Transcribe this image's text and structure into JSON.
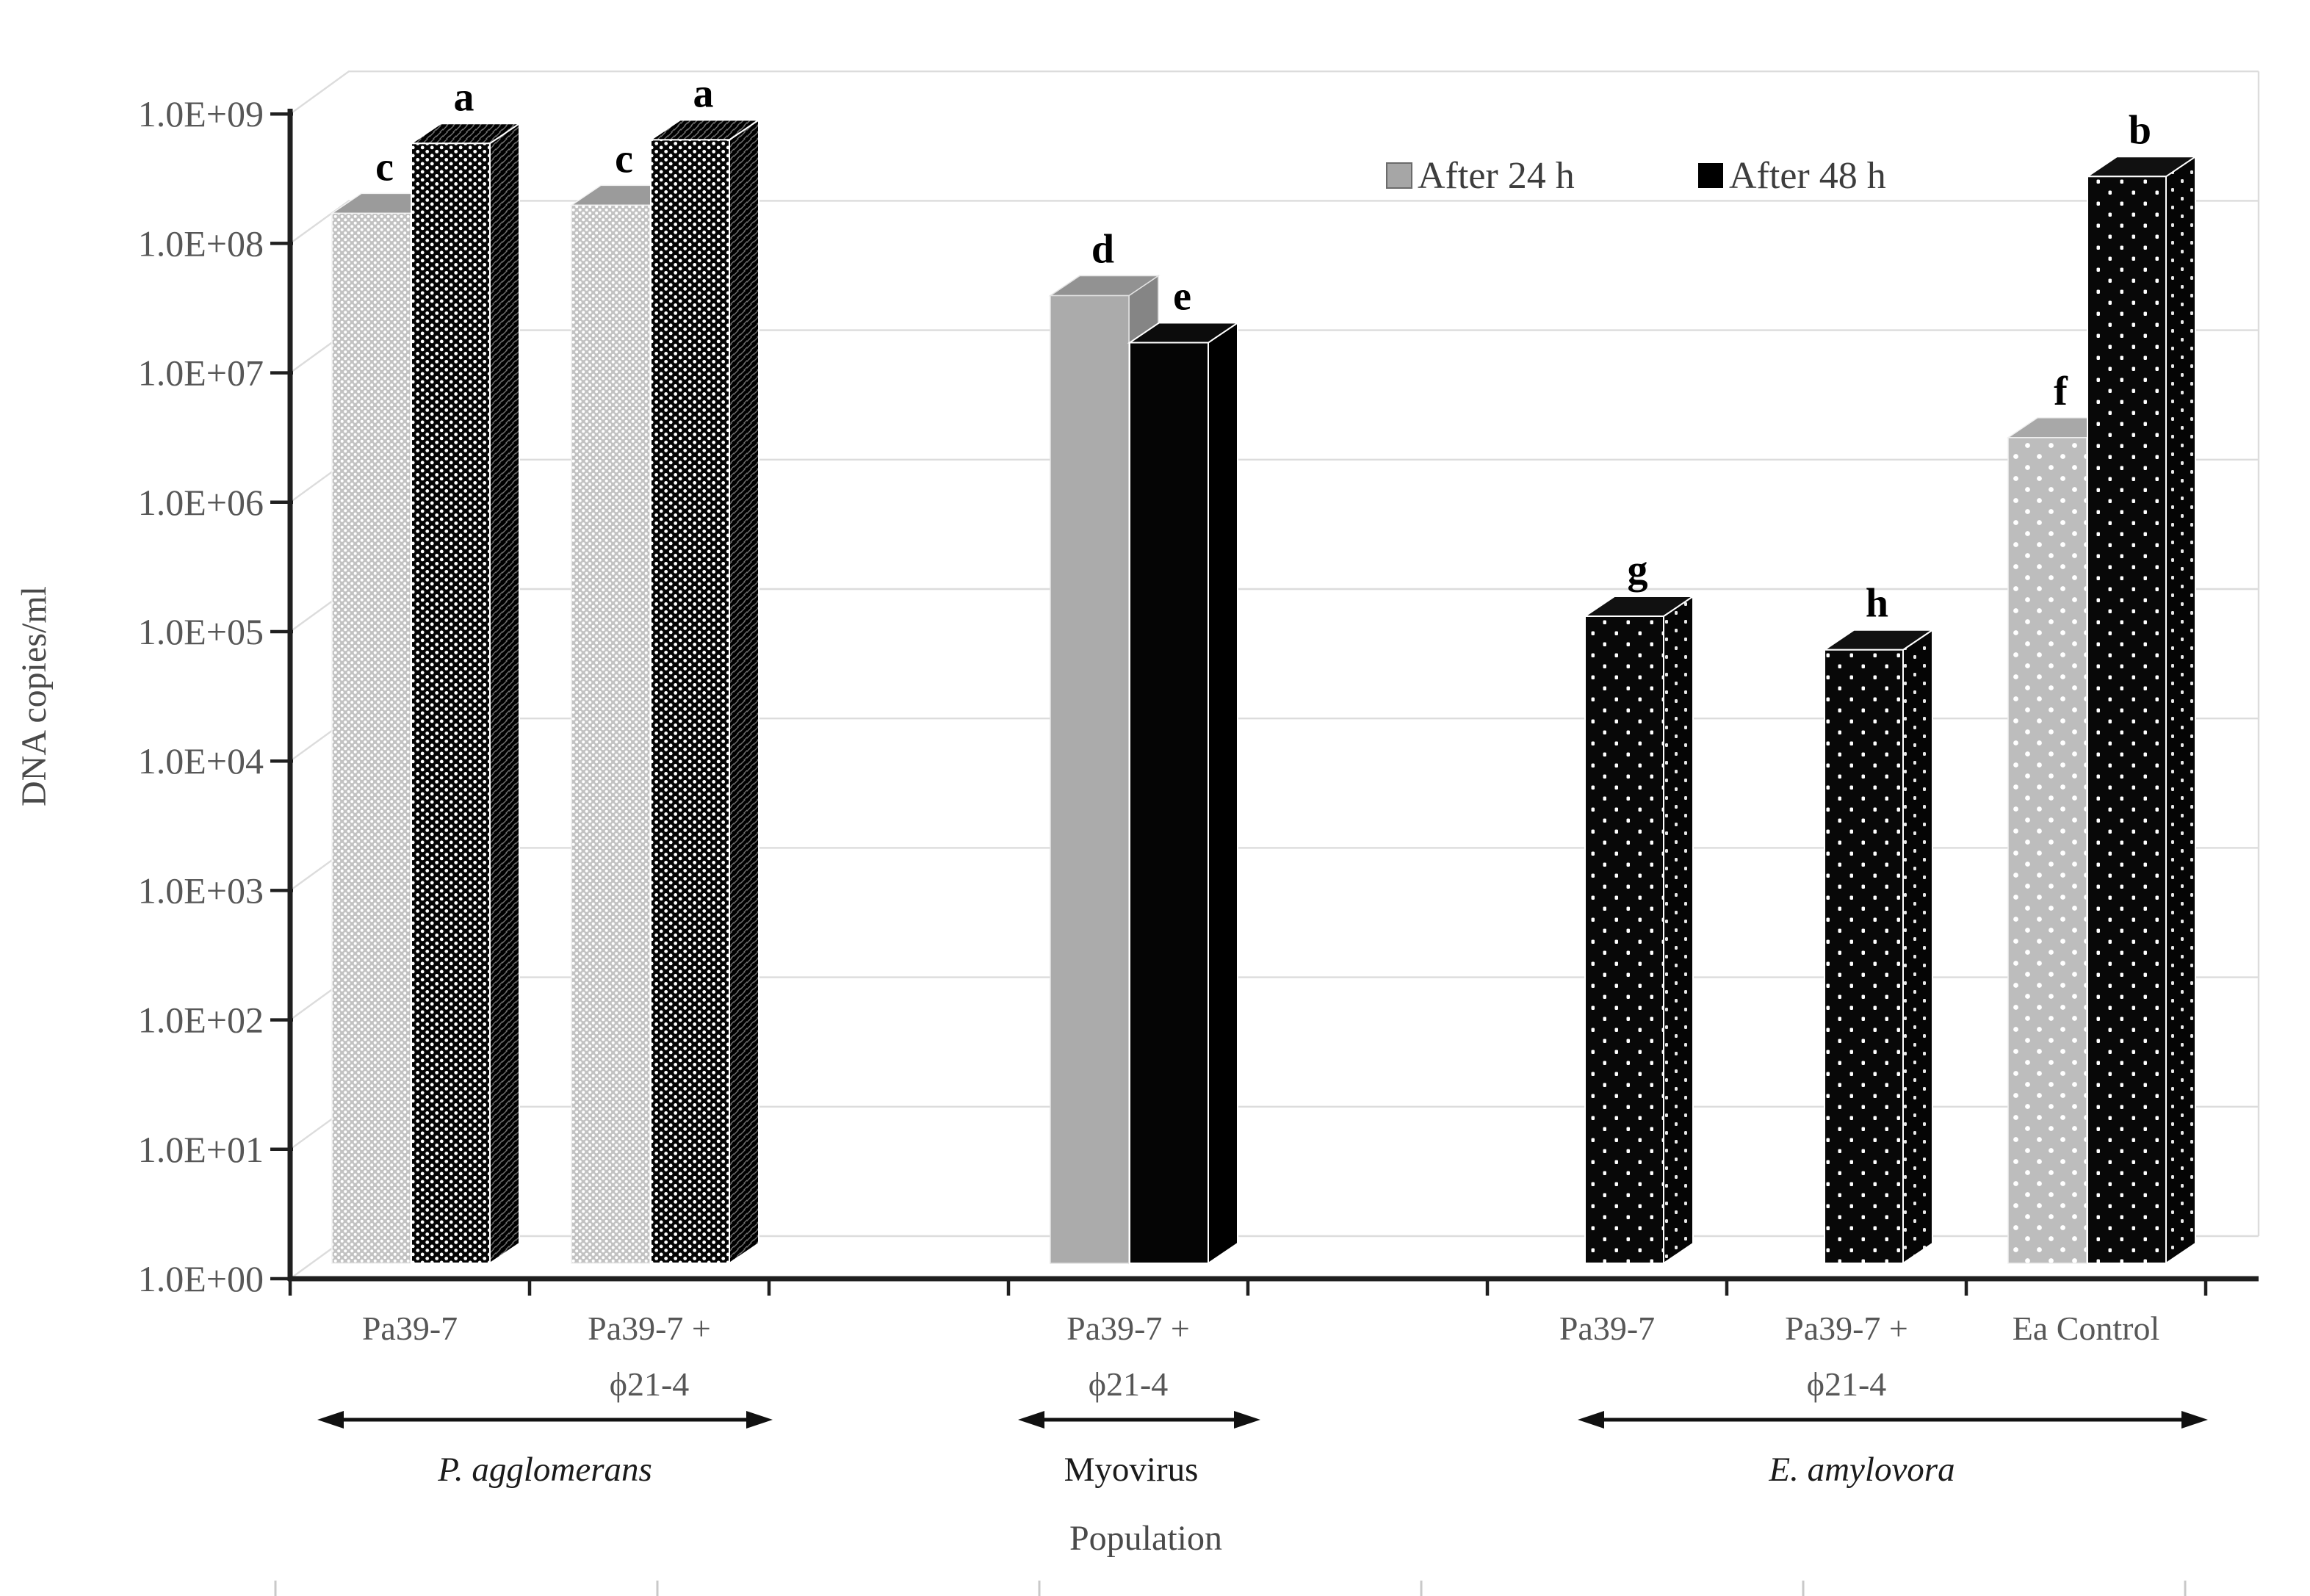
{
  "chart_data": {
    "type": "bar",
    "style": "excel-3d-monochrome-patterns",
    "title": "",
    "xlabel": "Population",
    "ylabel": "DNA copies/ml",
    "scale": "log10",
    "ylim": [
      1,
      1000000000
    ],
    "grid": true,
    "legend_position": "top-right-inside",
    "legend": [
      "After 24 h",
      "After 48 h"
    ],
    "legend_swatches": [
      "#a6a6a6",
      "#000000"
    ],
    "ytick_labels": [
      "1.0E+09",
      "1.0E+08",
      "1.0E+07",
      "1.0E+06",
      "1.0E+05",
      "1.0E+04",
      "1.0E+03",
      "1.0E+02",
      "1.0E+01",
      "1.0E+00"
    ],
    "n_category_slots": 8,
    "groups": [
      {
        "group": "P. agglomerans",
        "italic": true,
        "categories": [
          {
            "label": "Pa39-7",
            "label_lines": [
              "Pa39-7"
            ],
            "slot": 0,
            "bars": [
              {
                "series": "After 24 h",
                "value": 130000000.0,
                "letter": "c",
                "pattern": "dot-gray"
              },
              {
                "series": "After 48 h",
                "value": 450000000.0,
                "letter": "a",
                "pattern": "dot-black"
              }
            ]
          },
          {
            "label": "Pa39-7 + ϕ21-4",
            "label_lines": [
              "Pa39-7 +",
              "ϕ21-4"
            ],
            "slot": 1,
            "bars": [
              {
                "series": "After 24 h",
                "value": 150000000.0,
                "letter": "c",
                "pattern": "dot-gray"
              },
              {
                "series": "After 48 h",
                "value": 480000000.0,
                "letter": "a",
                "pattern": "dot-black"
              }
            ]
          }
        ]
      },
      {
        "group": "Myovirus",
        "italic": false,
        "categories": [
          {
            "label": "Pa39-7 + ϕ21-4",
            "label_lines": [
              "Pa39-7 +",
              "ϕ21-4"
            ],
            "slot": 3,
            "bars": [
              {
                "series": "After 24 h",
                "value": 30000000.0,
                "letter": "d",
                "pattern": "solid-gray"
              },
              {
                "series": "After 48 h",
                "value": 13000000.0,
                "letter": "e",
                "pattern": "solid-black"
              }
            ]
          }
        ]
      },
      {
        "group": "E. amylovora",
        "italic": true,
        "categories": [
          {
            "label": "Pa39-7",
            "label_lines": [
              "Pa39-7"
            ],
            "slot": 5,
            "bars": [
              {
                "series": "After 48 h",
                "value": 100000.0,
                "letter": "g",
                "pattern": "sparse-black"
              }
            ]
          },
          {
            "label": "Pa39-7 + ϕ21-4",
            "label_lines": [
              "Pa39-7 +",
              "ϕ21-4"
            ],
            "slot": 6,
            "bars": [
              {
                "series": "After 48 h",
                "value": 55000.0,
                "letter": "h",
                "pattern": "sparse-black"
              }
            ]
          },
          {
            "label": "Ea Control",
            "label_lines": [
              "Ea Control"
            ],
            "slot": 7,
            "bars": [
              {
                "series": "After 24 h",
                "value": 2400000.0,
                "letter": "f",
                "pattern": "sparse-gray"
              },
              {
                "series": "After 48 h",
                "value": 250000000.0,
                "letter": "b",
                "pattern": "sparse-black"
              }
            ]
          }
        ]
      }
    ]
  }
}
